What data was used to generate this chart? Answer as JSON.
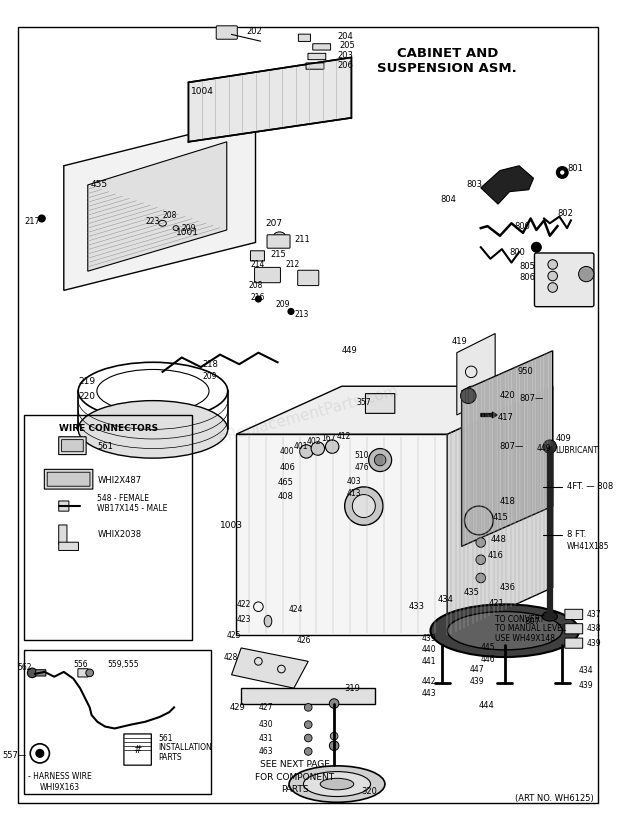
{
  "title_line1": "CABINET AND",
  "title_line2": "SUSPENSION ASM.",
  "subtitle": "(ART NO. WH6125)",
  "bg_color": "#ffffff",
  "fig_width": 6.2,
  "fig_height": 8.3,
  "dpi": 100,
  "watermark_text": "eReplacementParts.com",
  "watermark_color": "#aaaaaa",
  "border": [
    0.012,
    0.012,
    0.976,
    0.976
  ]
}
